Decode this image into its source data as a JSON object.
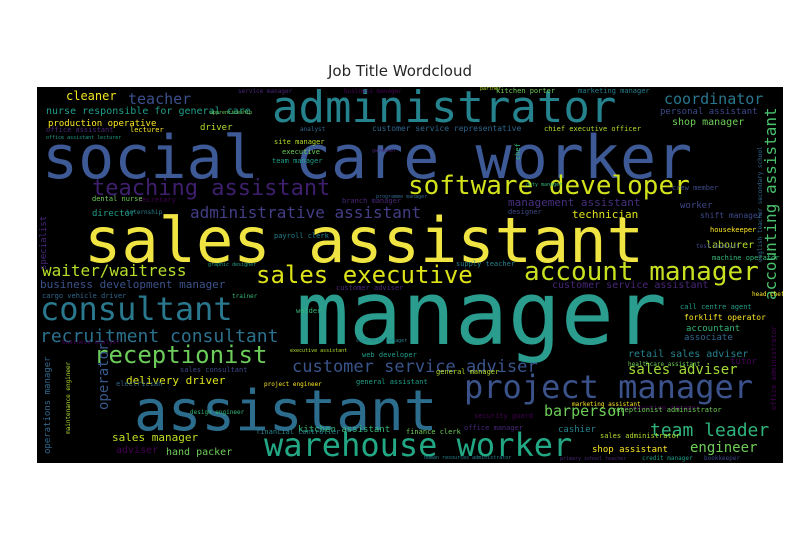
{
  "chart_data": {
    "type": "wordcloud",
    "title": "Job Title Wordcloud",
    "background": "#000000",
    "colormap": "viridis",
    "words": [
      {
        "text": "manager",
        "weight": 1.0,
        "color": "#2a9d8f"
      },
      {
        "text": "sales assistant",
        "weight": 0.93,
        "color": "#f0e442"
      },
      {
        "text": "social care worker",
        "weight": 0.88,
        "color": "#3e5a96"
      },
      {
        "text": "assistant",
        "weight": 0.82,
        "color": "#2c6d8e"
      },
      {
        "text": "administrator",
        "weight": 0.67,
        "color": "#25838e"
      },
      {
        "text": "warehouse worker",
        "weight": 0.48,
        "color": "#22a884"
      },
      {
        "text": "project manager",
        "weight": 0.47,
        "color": "#3b528b"
      },
      {
        "text": "consultant",
        "weight": 0.45,
        "color": "#2a788e"
      },
      {
        "text": "software developer",
        "weight": 0.36,
        "color": "#d2e21b"
      },
      {
        "text": "account manager",
        "weight": 0.36,
        "color": "#c8e020"
      },
      {
        "text": "sales executive",
        "weight": 0.33,
        "color": "#dde318"
      },
      {
        "text": "receptionist",
        "weight": 0.32,
        "color": "#6ccd5a"
      },
      {
        "text": "teaching assistant",
        "weight": 0.3,
        "color": "#3e1f6e"
      },
      {
        "text": "recruitment consultant",
        "weight": 0.25,
        "color": "#2c728e"
      },
      {
        "text": "customer service adviser",
        "weight": 0.22,
        "color": "#3a548c"
      },
      {
        "text": "team leader",
        "weight": 0.22,
        "color": "#2fb47c"
      },
      {
        "text": "administrative assistant",
        "weight": 0.2,
        "color": "#433e85"
      },
      {
        "text": "accounting assistant",
        "weight": 0.2,
        "color": "#4ac16d"
      },
      {
        "text": "waiter/waitress",
        "weight": 0.2,
        "color": "#b5de2b"
      },
      {
        "text": "coordinator",
        "weight": 0.19,
        "color": "#2a768e"
      },
      {
        "text": "barperson",
        "weight": 0.18,
        "color": "#6ece58"
      },
      {
        "text": "sales adviser",
        "weight": 0.17,
        "color": "#a2da37"
      },
      {
        "text": "operator",
        "weight": 0.17,
        "color": "#38598c"
      },
      {
        "text": "engineer",
        "weight": 0.16,
        "color": "#6ece58"
      },
      {
        "text": "teacher",
        "weight": 0.16,
        "color": "#3b518b"
      },
      {
        "text": "business development manager",
        "weight": 0.13,
        "color": "#3b528b"
      },
      {
        "text": "cleaner",
        "weight": 0.13,
        "color": "#f1e51d"
      },
      {
        "text": "technician",
        "weight": 0.12,
        "color": "#dde318"
      },
      {
        "text": "management assistant",
        "weight": 0.12,
        "color": "#46307e"
      },
      {
        "text": "delivery driver",
        "weight": 0.12,
        "color": "#dce319"
      },
      {
        "text": "sales manager",
        "weight": 0.11,
        "color": "#c2df23"
      },
      {
        "text": "shop manager",
        "weight": 0.11,
        "color": "#dce319"
      },
      {
        "text": "retail sales adviser",
        "weight": 0.11,
        "color": "#2c728e"
      },
      {
        "text": "customer service assistant",
        "weight": 0.11,
        "color": "#26818e"
      },
      {
        "text": "labourer",
        "weight": 0.11,
        "color": "#dde318"
      },
      {
        "text": "nurse responsible for general care",
        "weight": 0.11,
        "color": "#1f9e89"
      },
      {
        "text": "personal assistant",
        "weight": 0.11,
        "color": "#34608d"
      },
      {
        "text": "production operative",
        "weight": 0.1,
        "color": "#d8e219"
      },
      {
        "text": "accountant",
        "weight": 0.1,
        "color": "#dde318"
      },
      {
        "text": "associate",
        "weight": 0.1,
        "color": "#dde318"
      },
      {
        "text": "adviser",
        "weight": 0.1,
        "color": "#3e4989"
      },
      {
        "text": "hand packer",
        "weight": 0.1,
        "color": "#e5e419"
      },
      {
        "text": "cashier",
        "weight": 0.1,
        "color": "#b8de29"
      },
      {
        "text": "specialist",
        "weight": 0.09,
        "color": "#2c728e"
      },
      {
        "text": "driver",
        "weight": 0.09,
        "color": "#3b518b"
      },
      {
        "text": "director",
        "weight": 0.09,
        "color": "#8fd744"
      },
      {
        "text": "worker",
        "weight": 0.09,
        "color": "#dde318"
      },
      {
        "text": "shop assistant",
        "weight": 0.09,
        "color": "#482677"
      },
      {
        "text": "kitchen assistant",
        "weight": 0.09,
        "color": "#dde318"
      },
      {
        "text": "operations manager",
        "weight": 0.08,
        "color": "#dde318"
      },
      {
        "text": "tutor",
        "weight": 0.08,
        "color": "#dde318"
      },
      {
        "text": "executive",
        "weight": 0.08,
        "color": "#dde318"
      },
      {
        "text": "payroll clerk",
        "weight": 0.08,
        "color": "#dde318"
      },
      {
        "text": "office assistant",
        "weight": 0.08,
        "color": "#dde318"
      },
      {
        "text": "site manager",
        "weight": 0.07,
        "color": "#dde318"
      },
      {
        "text": "team manager",
        "weight": 0.07,
        "color": "#dde318"
      },
      {
        "text": "shift manager",
        "weight": 0.07,
        "color": "#dde318"
      },
      {
        "text": "forklift operator",
        "weight": 0.07,
        "color": "#dde318"
      },
      {
        "text": "welder",
        "weight": 0.07,
        "color": "#dde318"
      },
      {
        "text": "customer service representative",
        "weight": 0.07,
        "color": "#dde318"
      },
      {
        "text": "production manager",
        "weight": 0.07,
        "color": "#dde318"
      },
      {
        "text": "finance clerk",
        "weight": 0.06,
        "color": "#dde318"
      },
      {
        "text": "financial controller",
        "weight": 0.06,
        "color": "#dde318"
      },
      {
        "text": "office manager",
        "weight": 0.06,
        "color": "#dde318"
      },
      {
        "text": "sales administrator",
        "weight": 0.06,
        "color": "#dde318"
      },
      {
        "text": "credit manager",
        "weight": 0.06,
        "color": "#dde318"
      },
      {
        "text": "bookkeeper",
        "weight": 0.06,
        "color": "#dde318"
      },
      {
        "text": "housekeeper",
        "weight": 0.06,
        "color": "#dde318"
      },
      {
        "text": "machine operator",
        "weight": 0.06,
        "color": "#dde318"
      },
      {
        "text": "cargo vehicle driver",
        "weight": 0.06,
        "color": "#dde318"
      },
      {
        "text": "business analyst",
        "weight": 0.06,
        "color": "#dde318"
      },
      {
        "text": "kitchen porter",
        "weight": 0.06,
        "color": "#dde318"
      },
      {
        "text": "marketing manager",
        "weight": 0.06,
        "color": "#dde318"
      },
      {
        "text": "service manager",
        "weight": 0.06,
        "color": "#dde318"
      },
      {
        "text": "chief executive officer",
        "weight": 0.06,
        "color": "#dde318"
      },
      {
        "text": "web developer",
        "weight": 0.06,
        "color": "#dde318"
      },
      {
        "text": "designer",
        "weight": 0.06,
        "color": "#dde318"
      },
      {
        "text": "lecturer",
        "weight": 0.05,
        "color": "#dde318"
      },
      {
        "text": "trainer",
        "weight": 0.05,
        "color": "#dde318"
      },
      {
        "text": "analyst",
        "weight": 0.05,
        "color": "#dde318"
      },
      {
        "text": "secretary",
        "weight": 0.05,
        "color": "#dde318"
      },
      {
        "text": "dental nurse",
        "weight": 0.05,
        "color": "#dde318"
      },
      {
        "text": "internship",
        "weight": 0.05,
        "color": "#dde318"
      },
      {
        "text": "branch manager",
        "weight": 0.05,
        "color": "#dde318"
      },
      {
        "text": "general manager",
        "weight": 0.05,
        "color": "#dde318"
      },
      {
        "text": "general assistant",
        "weight": 0.05,
        "color": "#dde318"
      },
      {
        "text": "sales consultant",
        "weight": 0.05,
        "color": "#dde318"
      },
      {
        "text": "project engineer",
        "weight": 0.05,
        "color": "#dde318"
      },
      {
        "text": "design engineer",
        "weight": 0.05,
        "color": "#dde318"
      },
      {
        "text": "electrician",
        "weight": 0.05,
        "color": "#dde318"
      },
      {
        "text": "security guard",
        "weight": 0.05,
        "color": "#dde318"
      },
      {
        "text": "receptionist administrator",
        "weight": 0.05,
        "color": "#dde318"
      },
      {
        "text": "supply teacher",
        "weight": 0.05,
        "color": "#dde318"
      },
      {
        "text": "customer adviser",
        "weight": 0.05,
        "color": "#dde318"
      },
      {
        "text": "maintenance engineer",
        "weight": 0.05,
        "color": "#dde318"
      },
      {
        "text": "call centre agent",
        "weight": 0.05,
        "color": "#dde318"
      },
      {
        "text": "crew member",
        "weight": 0.05,
        "color": "#dde318"
      },
      {
        "text": "head chef",
        "weight": 0.05,
        "color": "#dde318"
      },
      {
        "text": "chef",
        "weight": 0.05,
        "color": "#dde318"
      },
      {
        "text": "english teacher secondary school",
        "weight": 0.05,
        "color": "#dde318"
      },
      {
        "text": "office administrator",
        "weight": 0.05,
        "color": "#dde318"
      },
      {
        "text": "healthcare assistant",
        "weight": 0.05,
        "color": "#dde318"
      },
      {
        "text": "human resources administrator",
        "weight": 0.04,
        "color": "#dde318"
      },
      {
        "text": "primary school teacher",
        "weight": 0.04,
        "color": "#dde318"
      },
      {
        "text": "executive assistant",
        "weight": 0.04,
        "color": "#dde318"
      },
      {
        "text": "graphic designer",
        "weight": 0.04,
        "color": "#dde318"
      },
      {
        "text": "test analyst",
        "weight": 0.04,
        "color": "#dde318"
      },
      {
        "text": "marketing assistant",
        "weight": 0.04,
        "color": "#dde318"
      },
      {
        "text": "duty manager",
        "weight": 0.04,
        "color": "#dde318"
      },
      {
        "text": "programme manager",
        "weight": 0.04,
        "color": "#dde318"
      },
      {
        "text": "business manager",
        "weight": 0.04,
        "color": "#dde318"
      },
      {
        "text": "apprenticeship",
        "weight": 0.04,
        "color": "#dde318"
      },
      {
        "text": "contracts manager",
        "weight": 0.04,
        "color": "#dde318"
      },
      {
        "text": "gardener",
        "weight": 0.04,
        "color": "#dde318"
      },
      {
        "text": "partner",
        "weight": 0.04,
        "color": "#dde318"
      },
      {
        "text": "office assistant lecturer",
        "weight": 0.04,
        "color": "#dde318"
      }
    ]
  }
}
